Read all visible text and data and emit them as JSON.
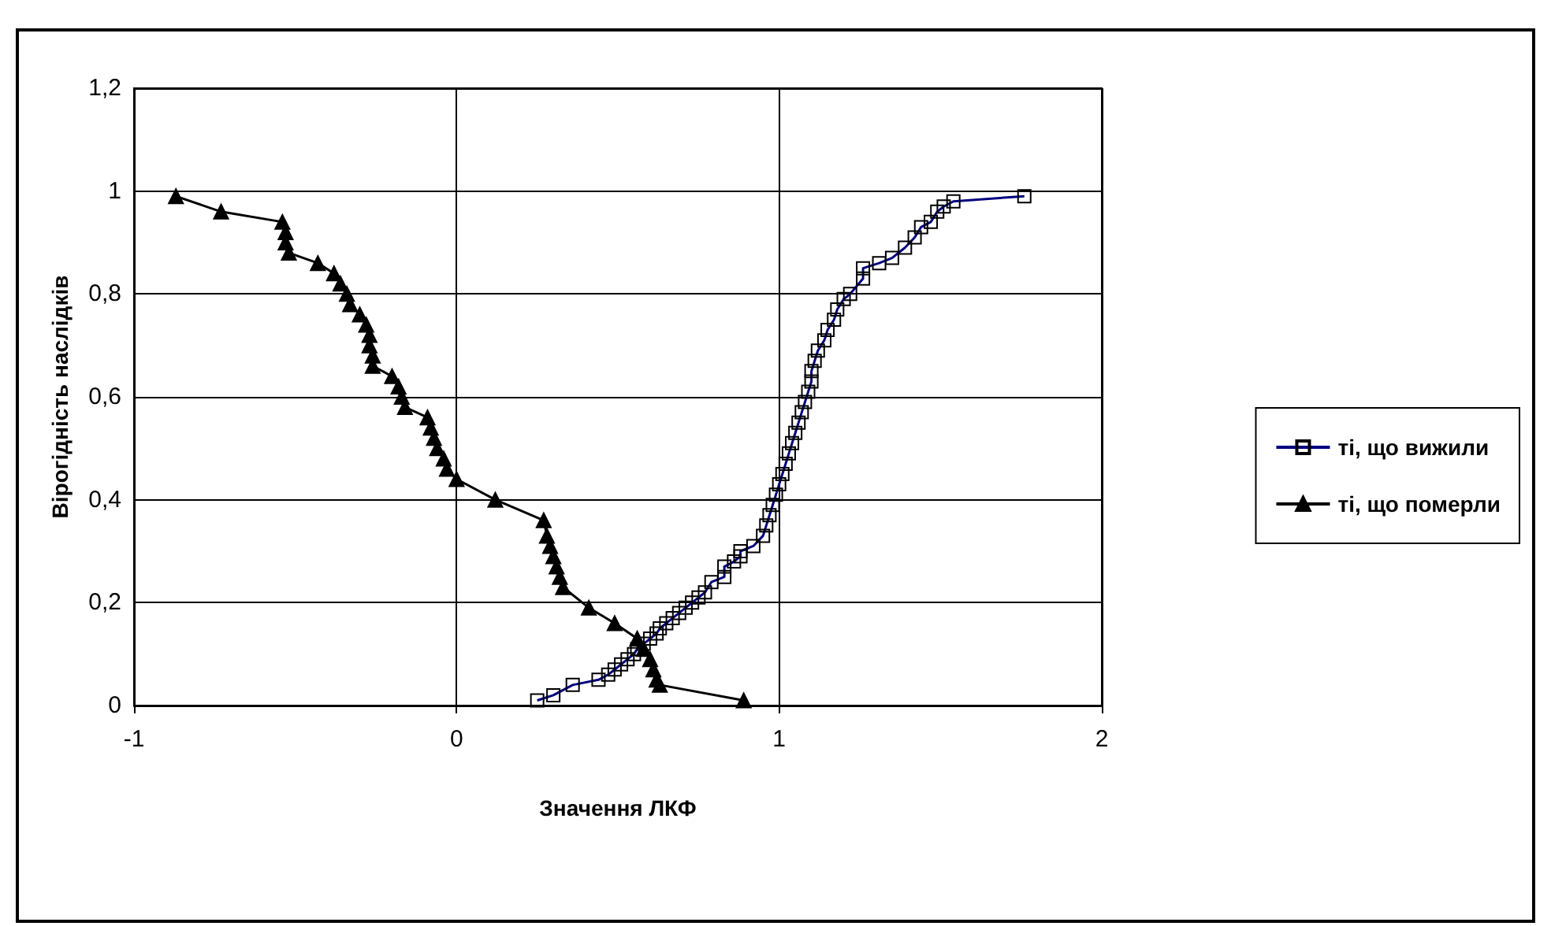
{
  "chart_data": {
    "type": "line",
    "xlabel": "Значення ЛКФ",
    "ylabel": "Вірогідність наслідків",
    "xlim": [
      -1,
      2
    ],
    "xticks": [
      -1,
      0,
      1,
      2
    ],
    "ylim": [
      0,
      1.2
    ],
    "yticks": [
      0,
      {
        "value": 0.2,
        "label": "0,2"
      },
      {
        "value": 0.4,
        "label": "0,4"
      },
      {
        "value": 0.6,
        "label": "0,6"
      },
      {
        "value": 0.8,
        "label": "0,8"
      },
      1,
      {
        "value": 1.2,
        "label": "1,2"
      }
    ],
    "grid": true,
    "legend": "right",
    "line_style": "solid",
    "series": [
      {
        "name": "ті, що вижили",
        "color": "#000080",
        "marker": "square",
        "x": [
          0.25,
          0.3,
          0.36,
          0.44,
          0.47,
          0.49,
          0.51,
          0.53,
          0.55,
          0.56,
          0.58,
          0.6,
          0.62,
          0.63,
          0.65,
          0.67,
          0.69,
          0.71,
          0.73,
          0.75,
          0.77,
          0.79,
          0.83,
          0.83,
          0.86,
          0.88,
          0.88,
          0.92,
          0.95,
          0.96,
          0.97,
          0.98,
          0.99,
          1.0,
          1.01,
          1.02,
          1.03,
          1.04,
          1.05,
          1.06,
          1.07,
          1.08,
          1.09,
          1.1,
          1.1,
          1.11,
          1.12,
          1.14,
          1.15,
          1.17,
          1.18,
          1.2,
          1.22,
          1.26,
          1.26,
          1.31,
          1.35,
          1.39,
          1.42,
          1.44,
          1.47,
          1.49,
          1.51,
          1.54,
          1.76
        ],
        "values": [
          0.01,
          0.02,
          0.04,
          0.05,
          0.06,
          0.07,
          0.08,
          0.09,
          0.1,
          0.11,
          0.12,
          0.13,
          0.14,
          0.15,
          0.16,
          0.17,
          0.18,
          0.19,
          0.2,
          0.21,
          0.22,
          0.24,
          0.25,
          0.27,
          0.28,
          0.29,
          0.3,
          0.31,
          0.33,
          0.35,
          0.37,
          0.39,
          0.41,
          0.43,
          0.45,
          0.47,
          0.49,
          0.51,
          0.53,
          0.55,
          0.57,
          0.59,
          0.61,
          0.63,
          0.65,
          0.67,
          0.69,
          0.71,
          0.73,
          0.75,
          0.77,
          0.79,
          0.8,
          0.83,
          0.85,
          0.86,
          0.87,
          0.89,
          0.91,
          0.93,
          0.94,
          0.96,
          0.97,
          0.98,
          0.99
        ]
      },
      {
        "name": "ті, що померли",
        "color": "#000000",
        "marker": "triangle",
        "x": [
          -0.87,
          -0.73,
          -0.54,
          -0.53,
          -0.53,
          -0.52,
          -0.43,
          -0.38,
          -0.36,
          -0.34,
          -0.33,
          -0.3,
          -0.28,
          -0.27,
          -0.27,
          -0.26,
          -0.26,
          -0.2,
          -0.18,
          -0.17,
          -0.16,
          -0.09,
          -0.08,
          -0.07,
          -0.06,
          -0.04,
          -0.03,
          0.0,
          0.12,
          0.27,
          0.28,
          0.29,
          0.3,
          0.31,
          0.32,
          0.33,
          0.41,
          0.49,
          0.56,
          0.58,
          0.6,
          0.61,
          0.62,
          0.63,
          0.89
        ],
        "values": [
          0.99,
          0.96,
          0.94,
          0.92,
          0.9,
          0.88,
          0.86,
          0.84,
          0.82,
          0.8,
          0.78,
          0.76,
          0.74,
          0.72,
          0.7,
          0.68,
          0.66,
          0.64,
          0.62,
          0.6,
          0.58,
          0.56,
          0.54,
          0.52,
          0.5,
          0.48,
          0.46,
          0.44,
          0.4,
          0.36,
          0.33,
          0.31,
          0.29,
          0.27,
          0.25,
          0.23,
          0.19,
          0.16,
          0.13,
          0.11,
          0.09,
          0.07,
          0.05,
          0.04,
          0.01
        ]
      }
    ]
  }
}
